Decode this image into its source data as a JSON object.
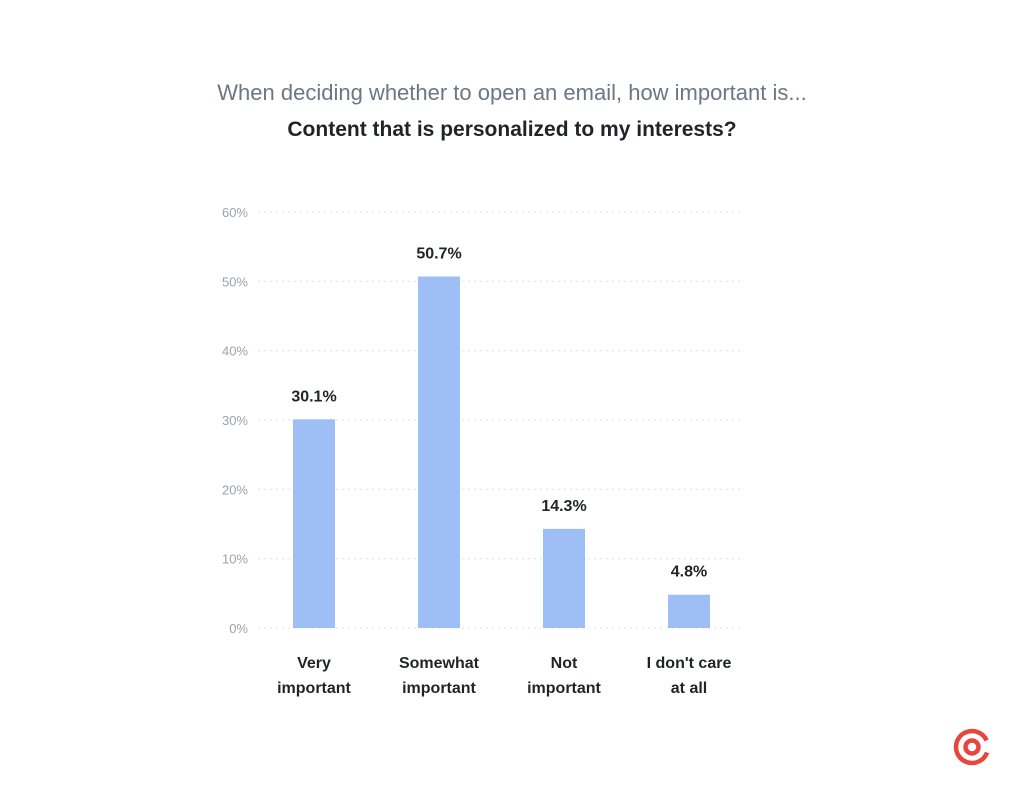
{
  "header": {
    "subtitle": "When deciding whether to open an email, how important is...",
    "title": "Content that is personalized to my interests?"
  },
  "chart_data": {
    "type": "bar",
    "categories": [
      [
        "Very",
        "important"
      ],
      [
        "Somewhat",
        "important"
      ],
      [
        "Not",
        "important"
      ],
      [
        "I don't care",
        "at all"
      ]
    ],
    "values": [
      30.1,
      50.7,
      14.3,
      4.8
    ],
    "value_labels": [
      "30.1%",
      "50.7%",
      "14.3%",
      "4.8%"
    ],
    "ylim": [
      0,
      60
    ],
    "yticks": [
      0,
      10,
      20,
      30,
      40,
      50,
      60
    ],
    "ytick_labels": [
      "0%",
      "10%",
      "20%",
      "30%",
      "40%",
      "50%",
      "60%"
    ],
    "xlabel": "",
    "ylabel": "",
    "grid": true,
    "bar_color": "#9ebff5"
  },
  "logo": {
    "icon": "at-sign-icon",
    "color": "#e8453c"
  }
}
